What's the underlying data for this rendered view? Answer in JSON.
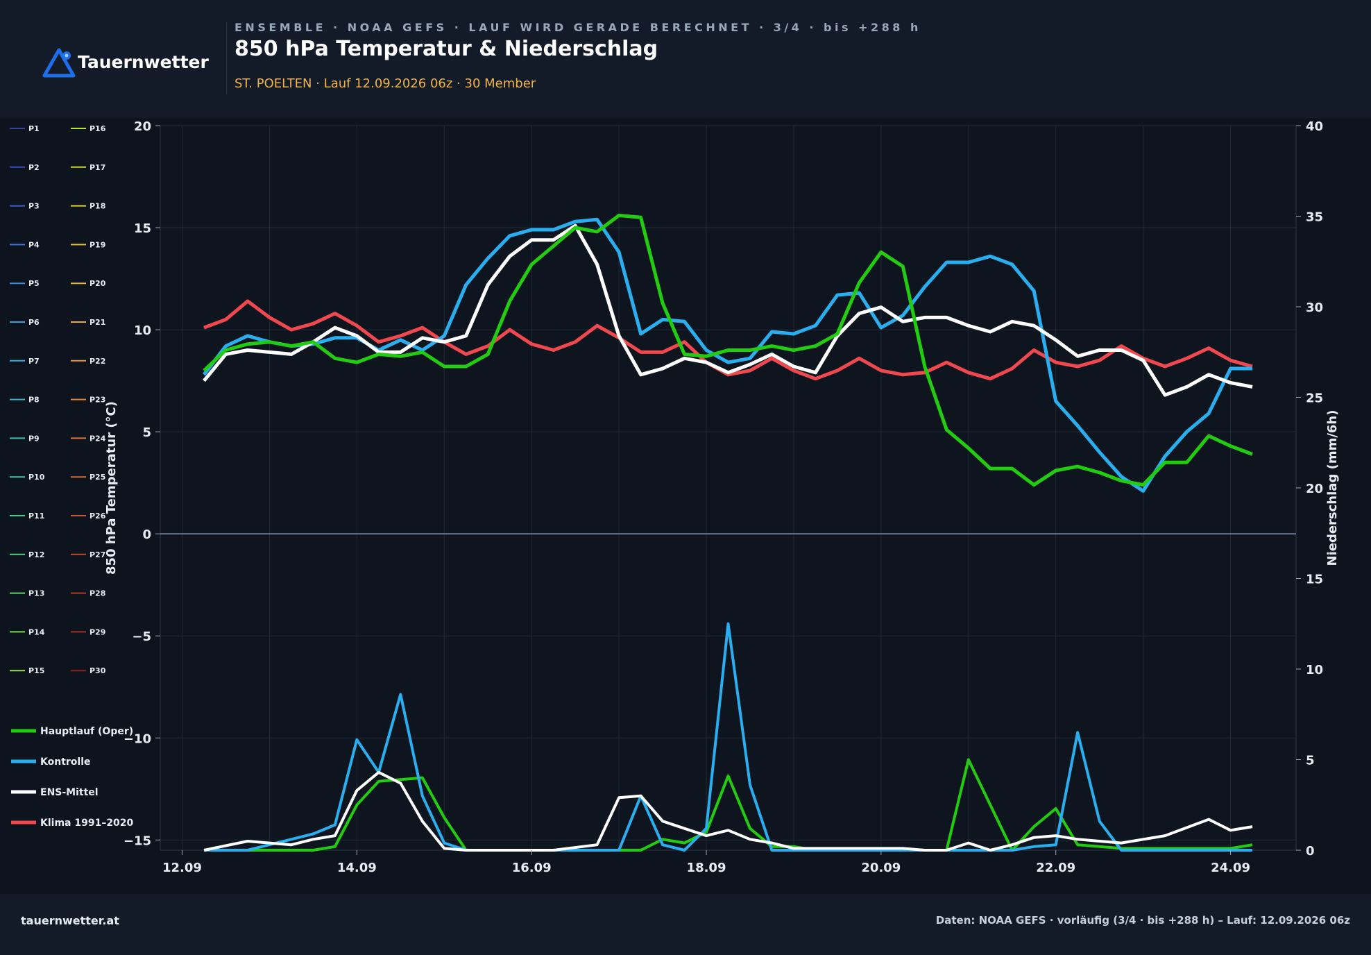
{
  "header": {
    "logo_text": "Tauernwetter",
    "kicker": "ENSEMBLE · NOAA GEFS · LAUF WIRD GERADE BERECHNET · 3/4 · bis +288 h",
    "title": "850 hPa Temperatur & Niederschlag",
    "subtitle": "ST. POELTEN · Lauf 12.09.2026 06z · 30 Member"
  },
  "footer": {
    "site": "tauernwetter.at",
    "source": "Daten: NOAA GEFS · vorläufig (3/4 · bis +288 h) – Lauf: 12.09.2026 06z"
  },
  "colors": {
    "background": "#0e141d",
    "oper": "#22cc11",
    "control": "#29aef0",
    "mean": "#ffffff",
    "climate": "#f0484e"
  },
  "chart_data": {
    "type": "line",
    "x_unit": "date",
    "x_range": [
      "2026-09-11T18:00",
      "2026-09-24T18:00"
    ],
    "x_ticks": [
      "12.09",
      "14.09",
      "16.09",
      "18.09",
      "20.09",
      "22.09",
      "24.09"
    ],
    "x_tick_dates": [
      "2026-09-12",
      "2026-09-14",
      "2026-09-16",
      "2026-09-18",
      "2026-09-20",
      "2026-09-22",
      "2026-09-24"
    ],
    "y_left": {
      "label": "850 hPa Temperatur (°C)",
      "range": [
        -15.5,
        20
      ],
      "ticks": [
        -15,
        -10,
        -5,
        0,
        5,
        10,
        15,
        20
      ],
      "tick_labels": [
        "−15",
        "−10",
        "−5",
        "0",
        "5",
        "10",
        "15",
        "20"
      ]
    },
    "y_right": {
      "label": "Niederschlag (mm/6h)",
      "range": [
        0,
        40
      ],
      "ticks": [
        0,
        5,
        10,
        15,
        20,
        25,
        30,
        35,
        40
      ],
      "tick_labels": [
        "0",
        "5",
        "10",
        "15",
        "20",
        "25",
        "30",
        "35",
        "40"
      ]
    },
    "grid": true,
    "legend_position": "left",
    "member_names": [
      "P1",
      "P2",
      "P3",
      "P4",
      "P5",
      "P6",
      "P7",
      "P8",
      "P9",
      "P10",
      "P11",
      "P12",
      "P13",
      "P14",
      "P15",
      "P16",
      "P17",
      "P18",
      "P19",
      "P20",
      "P21",
      "P22",
      "P23",
      "P24",
      "P25",
      "P26",
      "P27",
      "P28",
      "P29",
      "P30"
    ],
    "member_colors": [
      "#39408f",
      "#3e4bb0",
      "#3f5fcc",
      "#3f75dc",
      "#3d8be0",
      "#3b9fe0",
      "#38aee0",
      "#34b6c9",
      "#30c2b0",
      "#30c8a0",
      "#3bd08e",
      "#4ad37a",
      "#5cd865",
      "#78dc52",
      "#9ae04a",
      "#b5df44",
      "#c8d840",
      "#d9cf3c",
      "#e6c43a",
      "#eeb437",
      "#f1a435",
      "#f09332",
      "#ee8230",
      "#ea712d",
      "#e2602a",
      "#d75127",
      "#c94324",
      "#b93721",
      "#a72d1f",
      "#8f241c"
    ],
    "temp_series": [
      {
        "name": "Hauptlauf (Oper)",
        "color": "#22cc11",
        "x": [
          "2026-09-12T06:00",
          "2026-09-12T12:00",
          "2026-09-12T18:00",
          "2026-09-13T00:00",
          "2026-09-13T06:00",
          "2026-09-13T12:00",
          "2026-09-13T18:00",
          "2026-09-14T00:00",
          "2026-09-14T06:00",
          "2026-09-14T12:00",
          "2026-09-14T18:00",
          "2026-09-15T00:00",
          "2026-09-15T06:00",
          "2026-09-15T12:00",
          "2026-09-15T18:00",
          "2026-09-16T00:00",
          "2026-09-16T06:00",
          "2026-09-16T12:00",
          "2026-09-16T18:00",
          "2026-09-17T00:00",
          "2026-09-17T06:00",
          "2026-09-17T12:00",
          "2026-09-17T18:00",
          "2026-09-18T00:00",
          "2026-09-18T06:00",
          "2026-09-18T12:00",
          "2026-09-18T18:00",
          "2026-09-19T00:00",
          "2026-09-19T06:00",
          "2026-09-19T12:00",
          "2026-09-19T18:00",
          "2026-09-20T00:00",
          "2026-09-20T06:00",
          "2026-09-20T12:00",
          "2026-09-20T18:00",
          "2026-09-21T00:00",
          "2026-09-21T06:00",
          "2026-09-21T12:00",
          "2026-09-21T18:00",
          "2026-09-22T00:00",
          "2026-09-22T06:00",
          "2026-09-22T12:00",
          "2026-09-22T18:00",
          "2026-09-23T00:00",
          "2026-09-23T06:00",
          "2026-09-23T12:00",
          "2026-09-23T18:00",
          "2026-09-24T00:00",
          "2026-09-24T06:00"
        ],
        "values": [
          8.0,
          9.0,
          9.3,
          9.4,
          9.2,
          9.4,
          8.6,
          8.4,
          8.8,
          8.7,
          8.9,
          8.2,
          8.2,
          8.8,
          11.4,
          13.2,
          14.1,
          15.0,
          14.8,
          15.6,
          15.5,
          11.3,
          8.8,
          8.7,
          9.0,
          9.0,
          9.2,
          9.0,
          9.2,
          9.8,
          12.3,
          13.8,
          13.1,
          8.2,
          5.1,
          4.2,
          3.2,
          3.2,
          2.4,
          3.1,
          3.3,
          3.0,
          2.6,
          2.4,
          3.5,
          3.5,
          4.8,
          4.3,
          3.9
        ]
      },
      {
        "name": "Kontrolle",
        "color": "#29aef0",
        "x": [
          "2026-09-12T06:00",
          "2026-09-12T12:00",
          "2026-09-12T18:00",
          "2026-09-13T00:00",
          "2026-09-13T06:00",
          "2026-09-13T12:00",
          "2026-09-13T18:00",
          "2026-09-14T00:00",
          "2026-09-14T06:00",
          "2026-09-14T12:00",
          "2026-09-14T18:00",
          "2026-09-15T00:00",
          "2026-09-15T06:00",
          "2026-09-15T12:00",
          "2026-09-15T18:00",
          "2026-09-16T00:00",
          "2026-09-16T06:00",
          "2026-09-16T12:00",
          "2026-09-16T18:00",
          "2026-09-17T00:00",
          "2026-09-17T06:00",
          "2026-09-17T12:00",
          "2026-09-17T18:00",
          "2026-09-18T00:00",
          "2026-09-18T06:00",
          "2026-09-18T12:00",
          "2026-09-18T18:00",
          "2026-09-19T00:00",
          "2026-09-19T06:00",
          "2026-09-19T12:00",
          "2026-09-19T18:00",
          "2026-09-20T00:00",
          "2026-09-20T06:00",
          "2026-09-20T12:00",
          "2026-09-20T18:00",
          "2026-09-21T00:00",
          "2026-09-21T06:00",
          "2026-09-21T12:00",
          "2026-09-21T18:00",
          "2026-09-22T00:00",
          "2026-09-22T06:00",
          "2026-09-22T12:00",
          "2026-09-22T18:00",
          "2026-09-23T00:00",
          "2026-09-23T06:00",
          "2026-09-23T12:00",
          "2026-09-23T18:00",
          "2026-09-24T00:00",
          "2026-09-24T06:00"
        ],
        "values": [
          7.8,
          9.2,
          9.7,
          9.4,
          9.2,
          9.3,
          9.6,
          9.6,
          9.0,
          9.5,
          9.0,
          9.7,
          12.2,
          13.5,
          14.6,
          14.9,
          14.9,
          15.3,
          15.4,
          13.8,
          9.8,
          10.5,
          10.4,
          9.0,
          8.4,
          8.6,
          9.9,
          9.8,
          10.2,
          11.7,
          11.8,
          10.1,
          10.7,
          12.1,
          13.3,
          13.3,
          13.6,
          13.2,
          11.9,
          6.5,
          5.3,
          4.0,
          2.8,
          2.1,
          3.8,
          5.0,
          5.9,
          8.1,
          8.1
        ]
      },
      {
        "name": "ENS-Mittel",
        "color": "#ffffff",
        "x": [
          "2026-09-12T06:00",
          "2026-09-12T12:00",
          "2026-09-12T18:00",
          "2026-09-13T00:00",
          "2026-09-13T06:00",
          "2026-09-13T12:00",
          "2026-09-13T18:00",
          "2026-09-14T00:00",
          "2026-09-14T06:00",
          "2026-09-14T12:00",
          "2026-09-14T18:00",
          "2026-09-15T00:00",
          "2026-09-15T06:00",
          "2026-09-15T12:00",
          "2026-09-15T18:00",
          "2026-09-16T00:00",
          "2026-09-16T06:00",
          "2026-09-16T12:00",
          "2026-09-16T18:00",
          "2026-09-17T00:00",
          "2026-09-17T06:00",
          "2026-09-17T12:00",
          "2026-09-17T18:00",
          "2026-09-18T00:00",
          "2026-09-18T06:00",
          "2026-09-18T12:00",
          "2026-09-18T18:00",
          "2026-09-19T00:00",
          "2026-09-19T06:00",
          "2026-09-19T12:00",
          "2026-09-19T18:00",
          "2026-09-20T00:00",
          "2026-09-20T06:00",
          "2026-09-20T12:00",
          "2026-09-20T18:00",
          "2026-09-21T00:00",
          "2026-09-21T06:00",
          "2026-09-21T12:00",
          "2026-09-21T18:00",
          "2026-09-22T00:00",
          "2026-09-22T06:00",
          "2026-09-22T12:00",
          "2026-09-22T18:00",
          "2026-09-23T00:00",
          "2026-09-23T06:00",
          "2026-09-23T12:00",
          "2026-09-23T18:00",
          "2026-09-24T00:00",
          "2026-09-24T06:00"
        ],
        "values": [
          7.5,
          8.8,
          9.0,
          8.9,
          8.8,
          9.4,
          10.1,
          9.7,
          8.9,
          8.9,
          9.6,
          9.4,
          9.7,
          12.2,
          13.6,
          14.4,
          14.4,
          15.1,
          13.2,
          9.7,
          7.8,
          8.1,
          8.6,
          8.4,
          7.9,
          8.3,
          8.8,
          8.2,
          7.9,
          9.7,
          10.8,
          11.1,
          10.4,
          10.6,
          10.6,
          10.2,
          9.9,
          10.4,
          10.2,
          9.5,
          8.7,
          9.0,
          9.0,
          8.5,
          6.8,
          7.2,
          7.8,
          7.4,
          7.2
        ]
      },
      {
        "name": "Klima 1991–2020",
        "color": "#f0484e",
        "x": [
          "2026-09-12T06:00",
          "2026-09-12T12:00",
          "2026-09-12T18:00",
          "2026-09-13T00:00",
          "2026-09-13T06:00",
          "2026-09-13T12:00",
          "2026-09-13T18:00",
          "2026-09-14T00:00",
          "2026-09-14T06:00",
          "2026-09-14T12:00",
          "2026-09-14T18:00",
          "2026-09-15T00:00",
          "2026-09-15T06:00",
          "2026-09-15T12:00",
          "2026-09-15T18:00",
          "2026-09-16T00:00",
          "2026-09-16T06:00",
          "2026-09-16T12:00",
          "2026-09-16T18:00",
          "2026-09-17T00:00",
          "2026-09-17T06:00",
          "2026-09-17T12:00",
          "2026-09-17T18:00",
          "2026-09-18T00:00",
          "2026-09-18T06:00",
          "2026-09-18T12:00",
          "2026-09-18T18:00",
          "2026-09-19T00:00",
          "2026-09-19T06:00",
          "2026-09-19T12:00",
          "2026-09-19T18:00",
          "2026-09-20T00:00",
          "2026-09-20T06:00",
          "2026-09-20T12:00",
          "2026-09-20T18:00",
          "2026-09-21T00:00",
          "2026-09-21T06:00",
          "2026-09-21T12:00",
          "2026-09-21T18:00",
          "2026-09-22T00:00",
          "2026-09-22T06:00",
          "2026-09-22T12:00",
          "2026-09-22T18:00",
          "2026-09-23T00:00",
          "2026-09-23T06:00",
          "2026-09-23T12:00",
          "2026-09-23T18:00",
          "2026-09-24T00:00",
          "2026-09-24T06:00"
        ],
        "values": [
          10.1,
          10.5,
          11.4,
          10.6,
          10.0,
          10.3,
          10.8,
          10.2,
          9.4,
          9.7,
          10.1,
          9.4,
          8.8,
          9.2,
          10.0,
          9.3,
          9.0,
          9.4,
          10.2,
          9.6,
          8.9,
          8.9,
          9.4,
          8.4,
          7.8,
          8.0,
          8.6,
          8.0,
          7.6,
          8.0,
          8.6,
          8.0,
          7.8,
          7.9,
          8.4,
          7.9,
          7.6,
          8.1,
          9.0,
          8.4,
          8.2,
          8.5,
          9.2,
          8.6,
          8.2,
          8.6,
          9.1,
          8.5,
          8.2
        ]
      }
    ],
    "precip_series": [
      {
        "name": "Hauptlauf (Oper)",
        "color": "#22cc11",
        "x": [
          "2026-09-12T06:00",
          "2026-09-12T18:00",
          "2026-09-13T06:00",
          "2026-09-13T12:00",
          "2026-09-13T18:00",
          "2026-09-14T00:00",
          "2026-09-14T06:00",
          "2026-09-14T12:00",
          "2026-09-14T18:00",
          "2026-09-15T00:00",
          "2026-09-15T06:00",
          "2026-09-16T06:00",
          "2026-09-16T18:00",
          "2026-09-17T00:00",
          "2026-09-17T06:00",
          "2026-09-17T12:00",
          "2026-09-17T18:00",
          "2026-09-18T00:00",
          "2026-09-18T06:00",
          "2026-09-18T12:00",
          "2026-09-18T18:00",
          "2026-09-19T00:00",
          "2026-09-19T06:00",
          "2026-09-20T06:00",
          "2026-09-20T12:00",
          "2026-09-20T18:00",
          "2026-09-21T00:00",
          "2026-09-21T06:00",
          "2026-09-21T12:00",
          "2026-09-21T18:00",
          "2026-09-22T00:00",
          "2026-09-22T06:00",
          "2026-09-22T12:00",
          "2026-09-22T18:00",
          "2026-09-23T06:00",
          "2026-09-23T18:00",
          "2026-09-24T00:00",
          "2026-09-24T06:00"
        ],
        "values": [
          0,
          0,
          0,
          0,
          0.2,
          2.5,
          3.8,
          3.9,
          4.0,
          1.8,
          0,
          0,
          0,
          0,
          0,
          0.6,
          0.4,
          1.0,
          4.1,
          1.2,
          0.2,
          0.2,
          0,
          0,
          0,
          0,
          5.0,
          2.5,
          0,
          1.3,
          2.3,
          0.3,
          0.2,
          0.1,
          0.1,
          0.1,
          0.1,
          0.3
        ]
      },
      {
        "name": "Kontrolle",
        "color": "#29aef0",
        "x": [
          "2026-09-12T06:00",
          "2026-09-12T18:00",
          "2026-09-13T06:00",
          "2026-09-13T12:00",
          "2026-09-13T18:00",
          "2026-09-14T00:00",
          "2026-09-14T06:00",
          "2026-09-14T12:00",
          "2026-09-14T18:00",
          "2026-09-15T00:00",
          "2026-09-15T06:00",
          "2026-09-16T06:00",
          "2026-09-16T18:00",
          "2026-09-17T00:00",
          "2026-09-17T06:00",
          "2026-09-17T12:00",
          "2026-09-17T18:00",
          "2026-09-18T00:00",
          "2026-09-18T06:00",
          "2026-09-18T12:00",
          "2026-09-18T18:00",
          "2026-09-19T00:00",
          "2026-09-19T06:00",
          "2026-09-20T06:00",
          "2026-09-20T12:00",
          "2026-09-20T18:00",
          "2026-09-21T00:00",
          "2026-09-21T06:00",
          "2026-09-21T12:00",
          "2026-09-21T18:00",
          "2026-09-22T00:00",
          "2026-09-22T06:00",
          "2026-09-22T12:00",
          "2026-09-22T18:00",
          "2026-09-23T06:00",
          "2026-09-23T18:00",
          "2026-09-24T00:00",
          "2026-09-24T06:00"
        ],
        "values": [
          0,
          0,
          0.6,
          0.9,
          1.4,
          6.1,
          4.3,
          8.6,
          3.0,
          0.4,
          0,
          0,
          0,
          0,
          3.0,
          0.3,
          0,
          1.2,
          12.5,
          3.6,
          0,
          0,
          0,
          0,
          0,
          0,
          0,
          0,
          0,
          0.2,
          0.3,
          6.5,
          1.6,
          0,
          0,
          0,
          0,
          0
        ]
      },
      {
        "name": "ENS-Mittel",
        "color": "#ffffff",
        "x": [
          "2026-09-12T06:00",
          "2026-09-12T18:00",
          "2026-09-13T06:00",
          "2026-09-13T12:00",
          "2026-09-13T18:00",
          "2026-09-14T00:00",
          "2026-09-14T06:00",
          "2026-09-14T12:00",
          "2026-09-14T18:00",
          "2026-09-15T00:00",
          "2026-09-15T06:00",
          "2026-09-16T06:00",
          "2026-09-16T18:00",
          "2026-09-17T00:00",
          "2026-09-17T06:00",
          "2026-09-17T12:00",
          "2026-09-17T18:00",
          "2026-09-18T00:00",
          "2026-09-18T06:00",
          "2026-09-18T12:00",
          "2026-09-18T18:00",
          "2026-09-19T00:00",
          "2026-09-19T06:00",
          "2026-09-20T06:00",
          "2026-09-20T12:00",
          "2026-09-20T18:00",
          "2026-09-21T00:00",
          "2026-09-21T06:00",
          "2026-09-21T12:00",
          "2026-09-21T18:00",
          "2026-09-22T00:00",
          "2026-09-22T06:00",
          "2026-09-22T12:00",
          "2026-09-22T18:00",
          "2026-09-23T06:00",
          "2026-09-23T18:00",
          "2026-09-24T00:00",
          "2026-09-24T06:00"
        ],
        "values": [
          0,
          0.5,
          0.3,
          0.6,
          0.8,
          3.3,
          4.3,
          3.7,
          1.6,
          0.1,
          0,
          0,
          0.3,
          2.9,
          3.0,
          1.6,
          1.2,
          0.8,
          1.1,
          0.6,
          0.4,
          0.1,
          0.1,
          0.1,
          0,
          0,
          0.4,
          0,
          0.3,
          0.7,
          0.8,
          0.6,
          0.5,
          0.4,
          0.8,
          1.7,
          1.1,
          1.3
        ]
      }
    ]
  }
}
